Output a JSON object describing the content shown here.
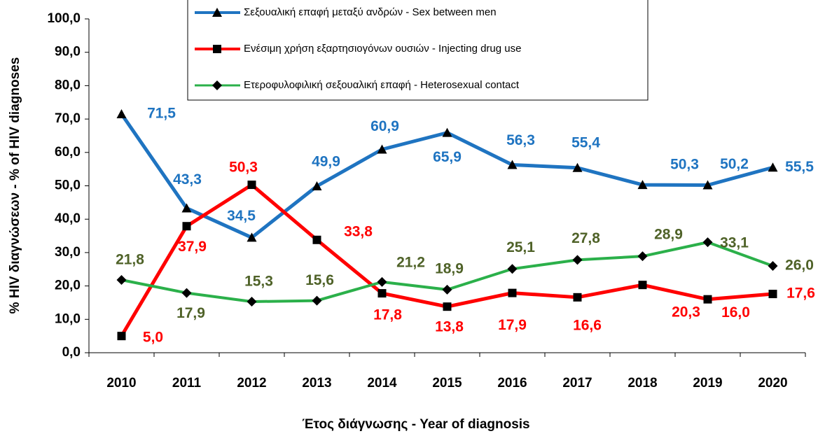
{
  "chart_data": {
    "type": "line",
    "y_label": "% HIV διαγνώσεων - % of HIV diagnoses",
    "x_label": "Έτος διάγνωσης - Year of diagnosis",
    "categories": [
      "2010",
      "2011",
      "2012",
      "2013",
      "2014",
      "2015",
      "2016",
      "2017",
      "2018",
      "2019",
      "2020"
    ],
    "ylim": [
      0,
      100
    ],
    "yticks": [
      {
        "value": 0,
        "label": "0,0"
      },
      {
        "value": 10,
        "label": "10,0"
      },
      {
        "value": 20,
        "label": "20,0"
      },
      {
        "value": 30,
        "label": "30,0"
      },
      {
        "value": 40,
        "label": "40,0"
      },
      {
        "value": 50,
        "label": "50,0"
      },
      {
        "value": 60,
        "label": "60,0"
      },
      {
        "value": 70,
        "label": "70,0"
      },
      {
        "value": 80,
        "label": "80,0"
      },
      {
        "value": 90,
        "label": "90,0"
      },
      {
        "value": 100,
        "label": "100,0"
      }
    ],
    "grid": false,
    "series": [
      {
        "name": "Σεξουαλική επαφή μεταξύ ανδρών - Sex between men",
        "color": "#1f74c1",
        "label_color": "#1f74c1",
        "marker": "triangle",
        "values": [
          71.5,
          43.3,
          34.5,
          49.9,
          60.9,
          65.9,
          56.3,
          55.4,
          50.3,
          50.2,
          55.5
        ],
        "value_labels": [
          "71,5",
          "43,3",
          "34,5",
          "49,9",
          "60,9",
          "65,9",
          "56,3",
          "55,4",
          "50,3",
          "50,2",
          "55,5"
        ]
      },
      {
        "name": "Ενέσιμη χρήση εξαρτησιογόνων ουσιών - Injecting drug use",
        "color": "#ff0000",
        "label_color": "#ff0000",
        "marker": "square",
        "values": [
          5.0,
          37.9,
          50.3,
          33.8,
          17.8,
          13.8,
          17.9,
          16.6,
          20.3,
          16.0,
          17.6
        ],
        "value_labels": [
          "5,0",
          "37,9",
          "50,3",
          "33,8",
          "17,8",
          "13,8",
          "17,9",
          "16,6",
          "20,3",
          "16,0",
          "17,6"
        ]
      },
      {
        "name": "Ετεροφυλοφιλική σεξουαλική επαφή - Heterosexual contact",
        "color": "#2bb04a",
        "label_color": "#4f6228",
        "marker": "diamond",
        "values": [
          21.8,
          17.9,
          15.3,
          15.6,
          21.2,
          18.9,
          25.1,
          27.8,
          28.9,
          33.1,
          26.0
        ],
        "value_labels": [
          "21,8",
          "17,9",
          "15,3",
          "15,6",
          "21,2",
          "18,9",
          "25,1",
          "27,8",
          "28,9",
          "33,1",
          "26,0"
        ]
      }
    ]
  }
}
